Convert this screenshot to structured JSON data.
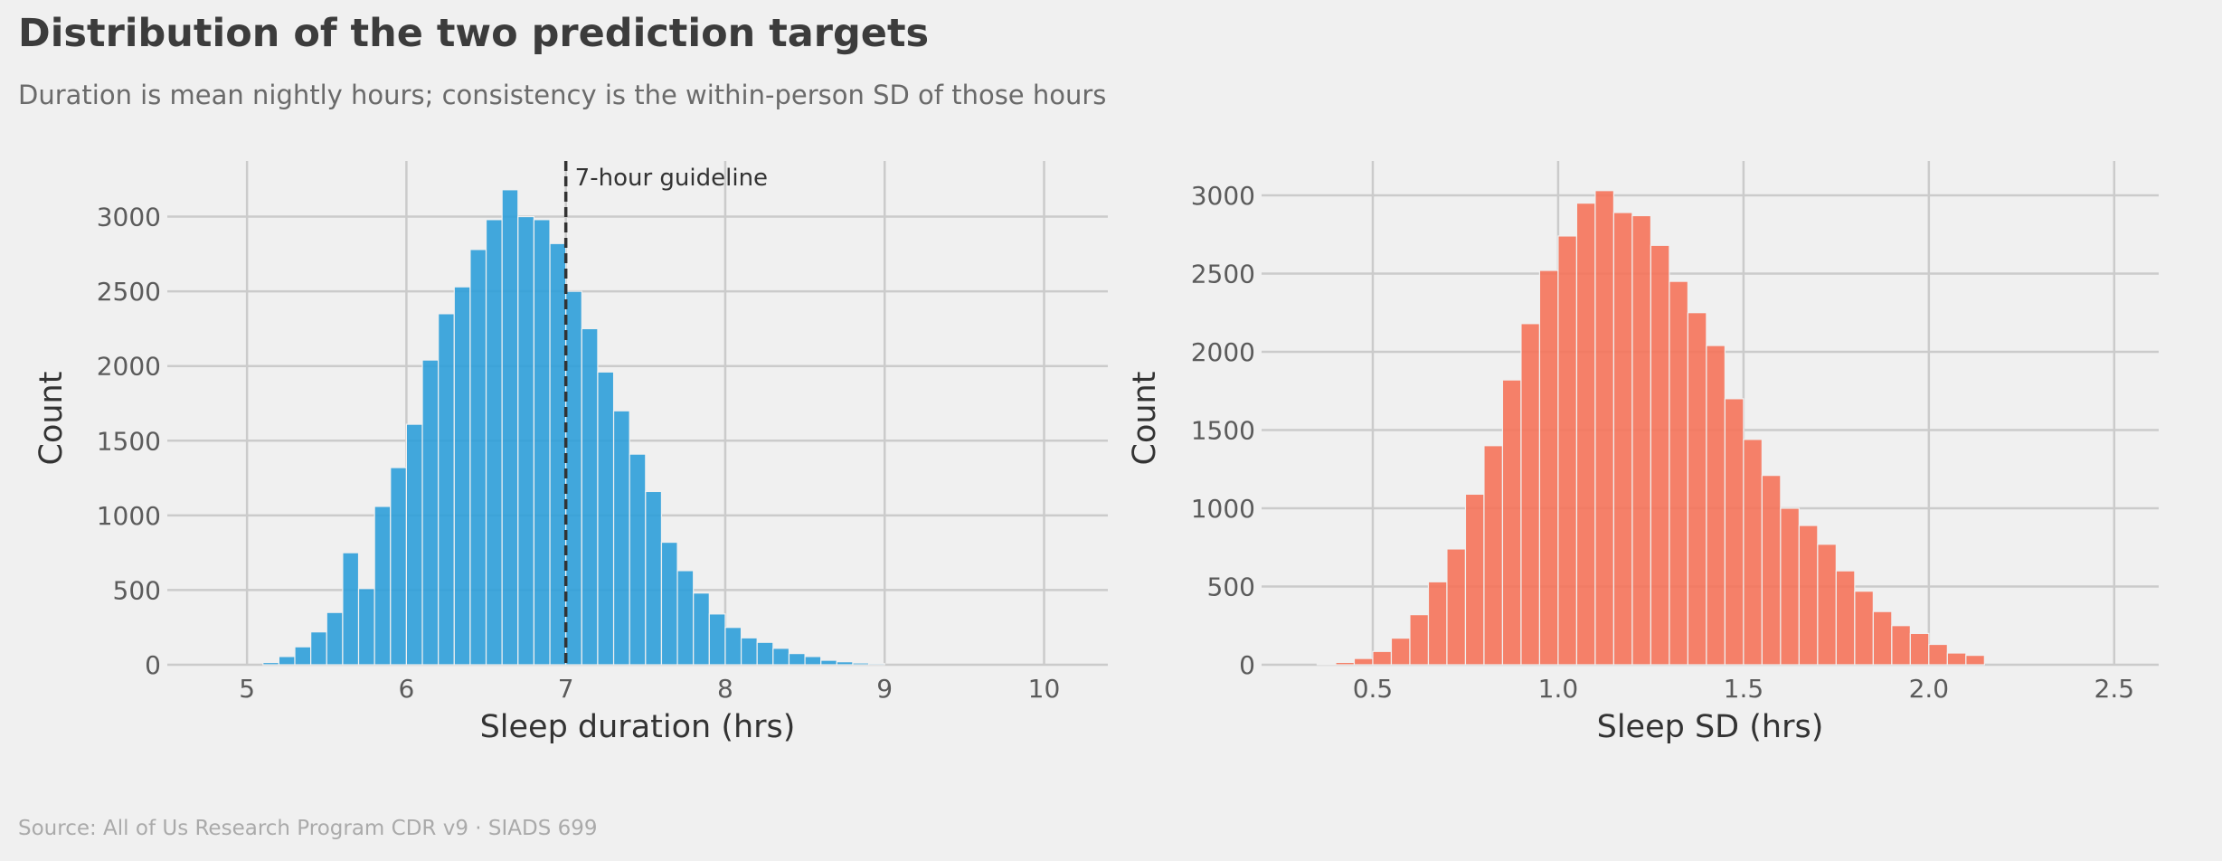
{
  "title": "Distribution of the two prediction targets",
  "subtitle": "Duration is mean nightly hours; consistency is the within-person SD of those hours",
  "source": "Source: All of Us Research Program CDR v9 · SIADS 699",
  "chart_data": [
    {
      "type": "bar",
      "subtype": "histogram",
      "title": "",
      "xlabel": "Sleep duration (hrs)",
      "ylabel": "Count",
      "color": "#2e9fd9",
      "xlim": [
        4.5,
        10.4
      ],
      "ylim": [
        0,
        3300
      ],
      "xticks": [
        5,
        6,
        7,
        8,
        9,
        10
      ],
      "xtick_labels": [
        "5",
        "6",
        "7",
        "8",
        "9",
        "10"
      ],
      "yticks": [
        0,
        500,
        1000,
        1500,
        2000,
        2500,
        3000
      ],
      "ytick_labels": [
        "0",
        "500",
        "1000",
        "1500",
        "2000",
        "2500",
        "3000"
      ],
      "grid": true,
      "bin_width": 0.1,
      "bin_starts": [
        5.1,
        5.2,
        5.3,
        5.4,
        5.5,
        5.6,
        5.7,
        5.8,
        5.9,
        6.0,
        6.1,
        6.2,
        6.3,
        6.4,
        6.5,
        6.6,
        6.7,
        6.8,
        6.9,
        7.0,
        7.1,
        7.2,
        7.3,
        7.4,
        7.5,
        7.6,
        7.7,
        7.8,
        7.9,
        8.0,
        8.1,
        8.2,
        8.3,
        8.4,
        8.5,
        8.6,
        8.7,
        8.8,
        8.9
      ],
      "values": [
        15,
        55,
        120,
        220,
        350,
        750,
        510,
        1060,
        1320,
        1610,
        2040,
        2350,
        2530,
        2780,
        2980,
        3180,
        3000,
        2980,
        2820,
        2500,
        2250,
        1960,
        1700,
        1410,
        1160,
        820,
        630,
        480,
        340,
        250,
        180,
        150,
        110,
        75,
        55,
        30,
        20,
        12,
        8
      ],
      "reference_line": {
        "x": 7,
        "label": "7-hour guideline",
        "style": "dashed",
        "color": "#333333"
      }
    },
    {
      "type": "bar",
      "subtype": "histogram",
      "title": "",
      "xlabel": "Sleep SD (hrs)",
      "ylabel": "Count",
      "color": "#f5735a",
      "xlim": [
        0.2,
        2.62
      ],
      "ylim": [
        0,
        3150
      ],
      "xticks": [
        0.5,
        1.0,
        1.5,
        2.0,
        2.5
      ],
      "xtick_labels": [
        "0.5",
        "1.0",
        "1.5",
        "2.0",
        "2.5"
      ],
      "yticks": [
        0,
        500,
        1000,
        1500,
        2000,
        2500,
        3000
      ],
      "ytick_labels": [
        "0",
        "500",
        "1000",
        "1500",
        "2000",
        "2500",
        "3000"
      ],
      "grid": true,
      "bin_width": 0.05,
      "bin_starts": [
        0.35,
        0.4,
        0.45,
        0.5,
        0.55,
        0.6,
        0.65,
        0.7,
        0.75,
        0.8,
        0.85,
        0.9,
        0.95,
        1.0,
        1.05,
        1.1,
        1.15,
        1.2,
        1.25,
        1.3,
        1.35,
        1.4,
        1.45,
        1.5,
        1.55,
        1.6,
        1.65,
        1.7,
        1.75,
        1.8,
        1.85,
        1.9,
        1.95,
        2.0,
        2.05,
        2.1
      ],
      "values": [
        5,
        15,
        40,
        85,
        170,
        320,
        530,
        740,
        1090,
        1400,
        1820,
        2180,
        2520,
        2740,
        2950,
        3030,
        2890,
        2870,
        2680,
        2450,
        2250,
        2040,
        1700,
        1440,
        1210,
        1000,
        890,
        770,
        600,
        470,
        340,
        250,
        200,
        130,
        75,
        60
      ]
    }
  ]
}
